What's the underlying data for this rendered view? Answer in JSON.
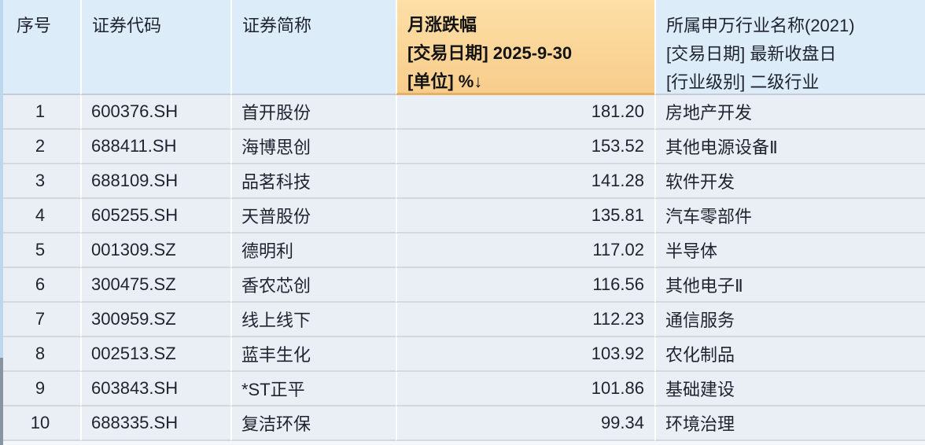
{
  "table": {
    "headers": {
      "index": "序号",
      "code": "证券代码",
      "name": "证券简称",
      "change_line1": "月涨跌幅",
      "change_line2": "[交易日期] 2025-9-30",
      "change_line3": "[单位] %↓",
      "industry_line1": "所属申万行业名称(2021)",
      "industry_line2": "[交易日期] 最新收盘日",
      "industry_line3": "[行业级别] 二级行业"
    },
    "rows": [
      {
        "index": "1",
        "code": "600376.SH",
        "name": "首开股份",
        "change": "181.20",
        "industry": "房地产开发"
      },
      {
        "index": "2",
        "code": "688411.SH",
        "name": "海博思创",
        "change": "153.52",
        "industry": "其他电源设备Ⅱ"
      },
      {
        "index": "3",
        "code": "688109.SH",
        "name": "品茗科技",
        "change": "141.28",
        "industry": "软件开发"
      },
      {
        "index": "4",
        "code": "605255.SH",
        "name": "天普股份",
        "change": "135.81",
        "industry": "汽车零部件"
      },
      {
        "index": "5",
        "code": "001309.SZ",
        "name": "德明利",
        "change": "117.02",
        "industry": "半导体"
      },
      {
        "index": "6",
        "code": "300475.SZ",
        "name": "香农芯创",
        "change": "116.56",
        "industry": "其他电子Ⅱ"
      },
      {
        "index": "7",
        "code": "300959.SZ",
        "name": "线上线下",
        "change": "112.23",
        "industry": "通信服务"
      },
      {
        "index": "8",
        "code": "002513.SZ",
        "name": "蓝丰生化",
        "change": "103.92",
        "industry": "农化制品"
      },
      {
        "index": "9",
        "code": "603843.SH",
        "name": "*ST正平",
        "change": "101.86",
        "industry": "基础建设"
      },
      {
        "index": "10",
        "code": "688335.SH",
        "name": "复洁环保",
        "change": "99.34",
        "industry": "环境治理"
      }
    ],
    "sort_indicator": "↓",
    "colors": {
      "header_bg": "#dcedf9",
      "highlight_header_top": "#fddfa8",
      "highlight_header_bottom": "#f7cd8c",
      "highlight_header_border": "#e9af62",
      "row_bg": "#eaeff6",
      "row_border": "#d4d9e0",
      "text": "#1f2330"
    }
  }
}
